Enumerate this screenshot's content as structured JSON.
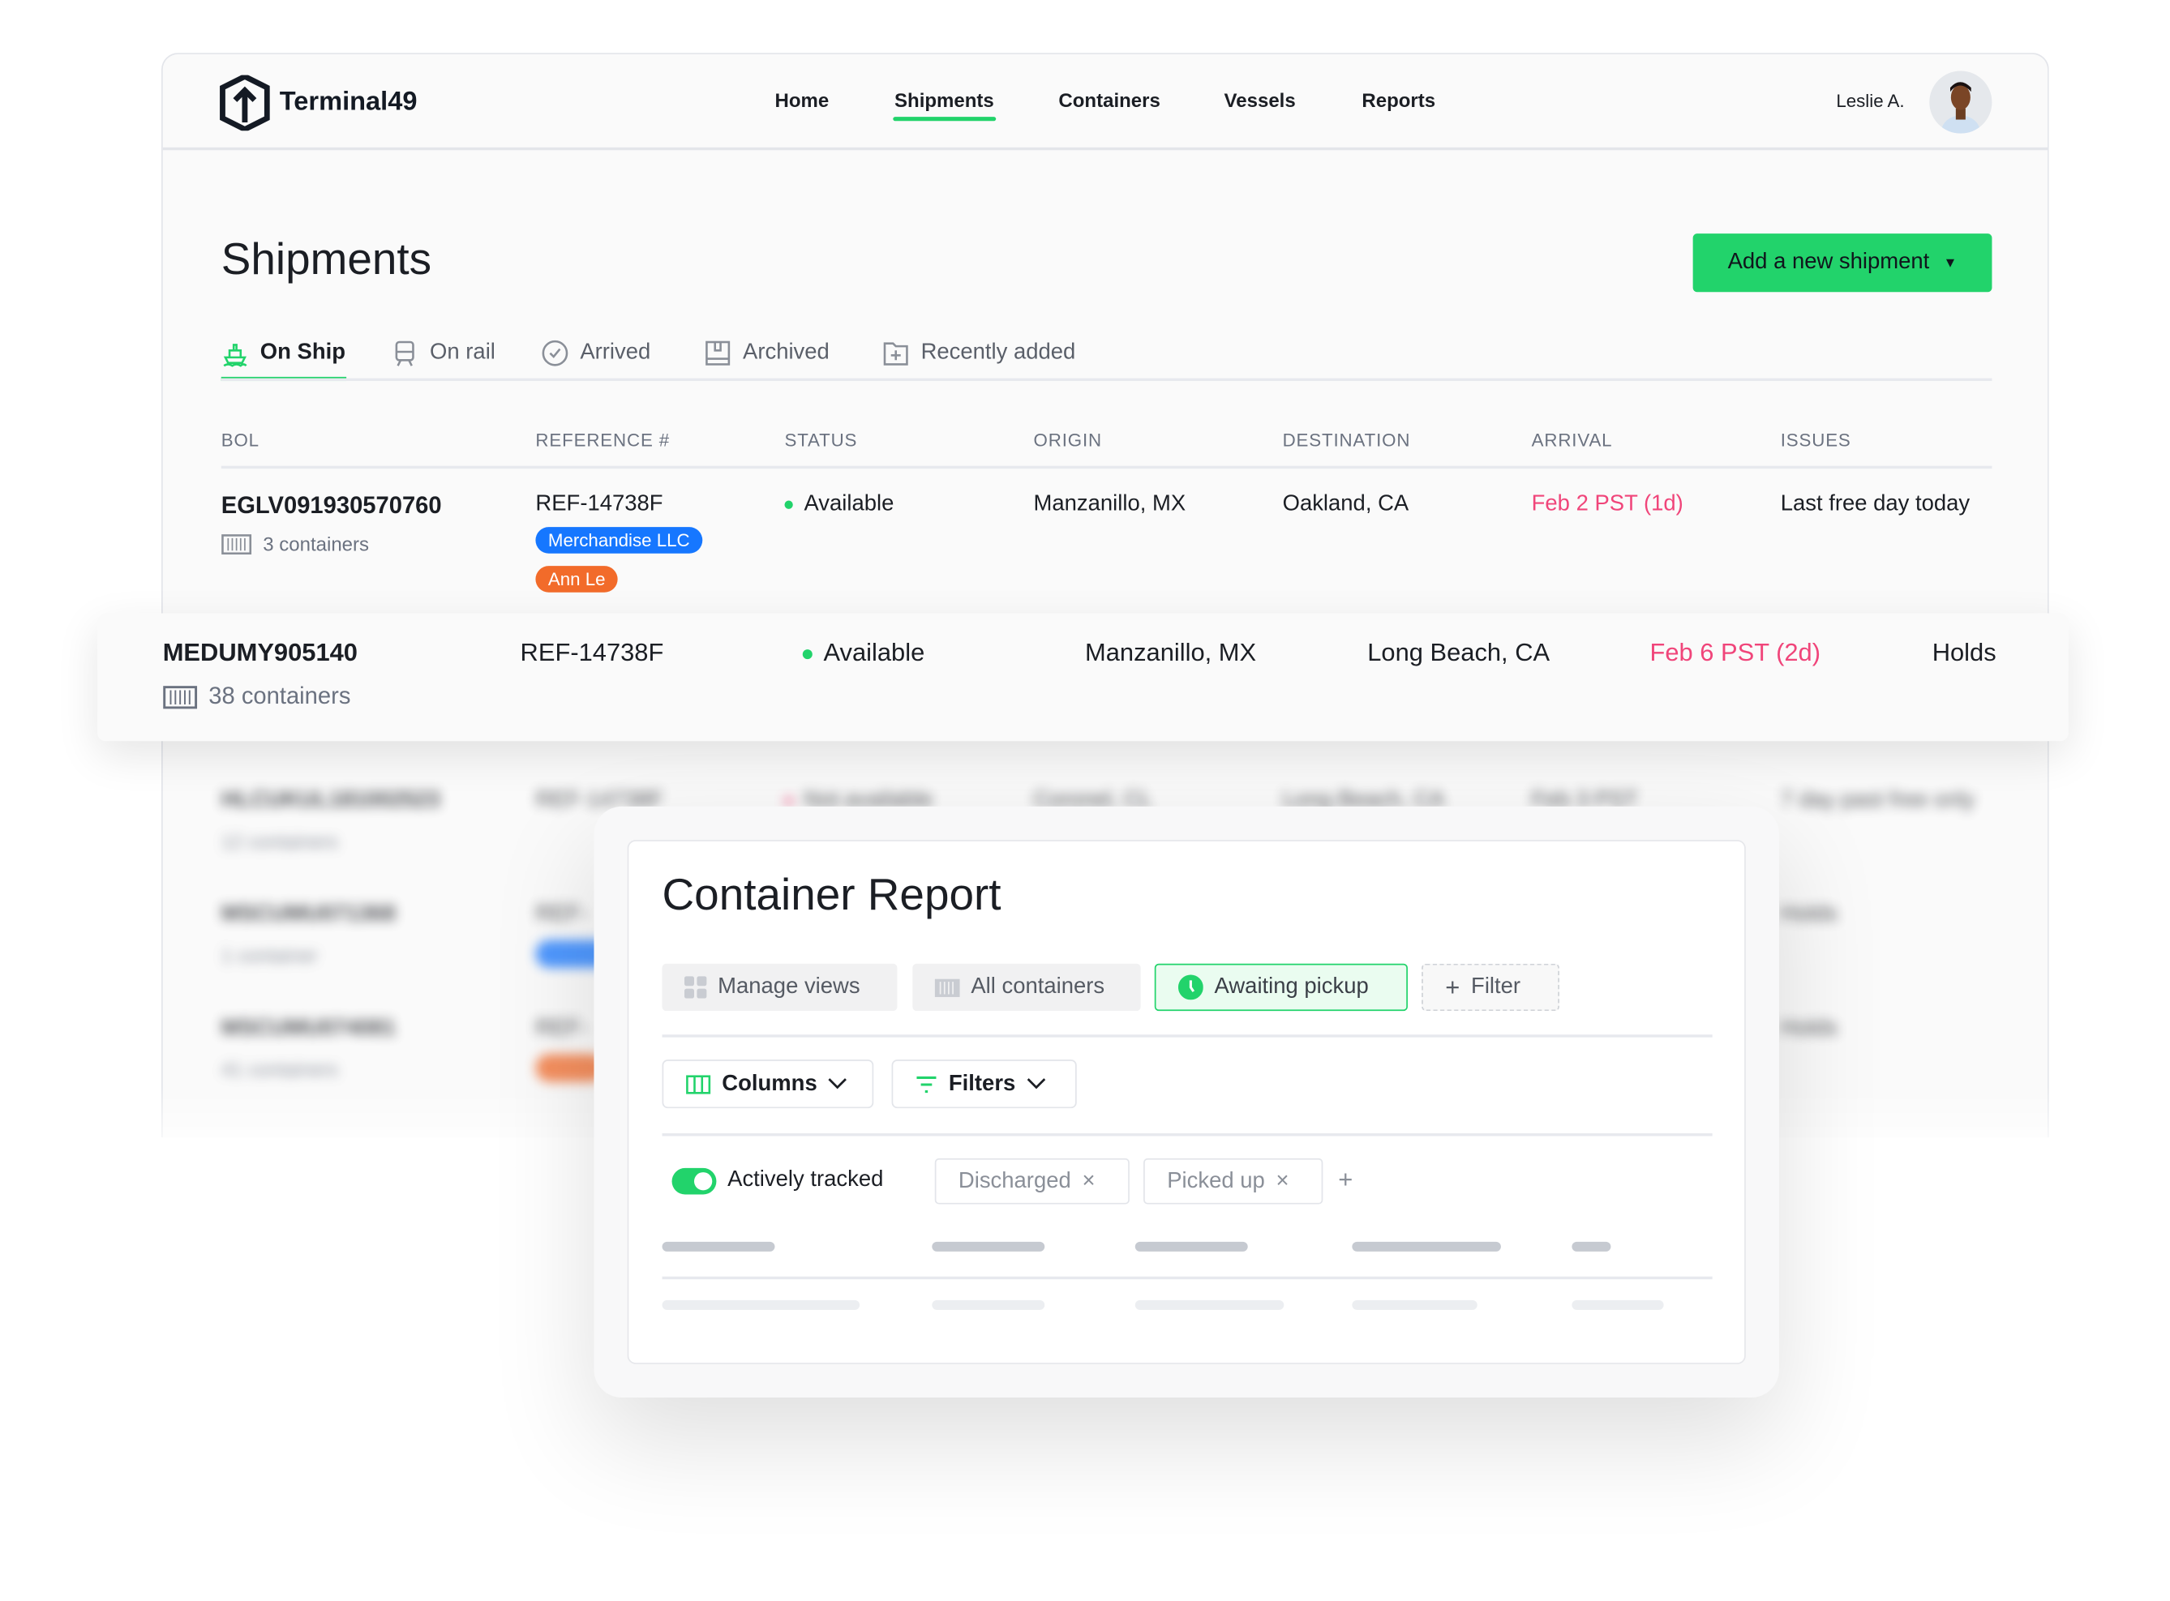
{
  "app": {
    "name": "Terminal49",
    "brand_color": "#22d36b"
  },
  "nav": {
    "items": [
      "Home",
      "Shipments",
      "Containers",
      "Vessels",
      "Reports"
    ],
    "active": "Shipments"
  },
  "user": {
    "name": "Leslie A."
  },
  "page": {
    "title": "Shipments",
    "add_button": "Add a new shipment"
  },
  "tabs": [
    {
      "label": "On Ship",
      "icon": "ship-icon",
      "active": true
    },
    {
      "label": "On rail",
      "icon": "train-icon"
    },
    {
      "label": "Arrived",
      "icon": "check-circle-icon"
    },
    {
      "label": "Archived",
      "icon": "archive-icon"
    },
    {
      "label": "Recently added",
      "icon": "folder-plus-icon"
    }
  ],
  "table": {
    "columns": [
      "BOL",
      "REFERENCE #",
      "STATUS",
      "ORIGIN",
      "DESTINATION",
      "ARRIVAL",
      "ISSUES"
    ],
    "rows": [
      {
        "bol": "EGLV091930570760",
        "containers": "3 containers",
        "ref": "REF-14738F",
        "tags": [
          {
            "label": "Merchandise LLC",
            "color": "#1677ff"
          },
          {
            "label": "Ann Le",
            "color": "#f26b2a"
          }
        ],
        "status": "Available",
        "status_color": "#22d36b",
        "origin": "Manzanillo, MX",
        "destination": "Oakland, CA",
        "arrival": "Feb 2 PST (1d)",
        "issues": "Last free day today"
      },
      {
        "bol": "MEDUMY905140",
        "containers": "38 containers",
        "ref": "REF-14738F",
        "status": "Available",
        "status_color": "#22d36b",
        "origin": "Manzanillo, MX",
        "destination": "Long Beach, CA",
        "arrival": "Feb 6 PST (2d)",
        "issues": "Holds",
        "highlighted": true
      },
      {
        "bol": "HLCUKUL181002523",
        "containers": "12 containers",
        "ref": "REF-14738F",
        "status": "Not available",
        "status_color": "#f0457a",
        "origin": "Coronel, CL",
        "destination": "Long Beach, CA",
        "arrival": "Feb 3 PST",
        "issues": "7 day past free only"
      },
      {
        "bol": "MSCUMU071368",
        "containers": "1 container",
        "ref": "REF-",
        "issues": "Holds"
      },
      {
        "bol": "MSCUMU074081",
        "containers": "41 containers",
        "ref": "REF-",
        "issues": "Holds"
      }
    ],
    "arrival_color": "#f0457a"
  },
  "report": {
    "title": "Container Report",
    "views": [
      {
        "label": "Manage views",
        "icon": "grid-icon"
      },
      {
        "label": "All containers",
        "icon": "container-icon"
      },
      {
        "label": "Awaiting pickup",
        "icon": "clock-icon",
        "active": true
      },
      {
        "label": "Filter",
        "icon": "plus-icon"
      }
    ],
    "columns_label": "Columns",
    "filters_label": "Filters",
    "toggle": {
      "label": "Actively tracked",
      "on": true
    },
    "filter_pills": [
      "Discharged",
      "Picked up"
    ]
  }
}
